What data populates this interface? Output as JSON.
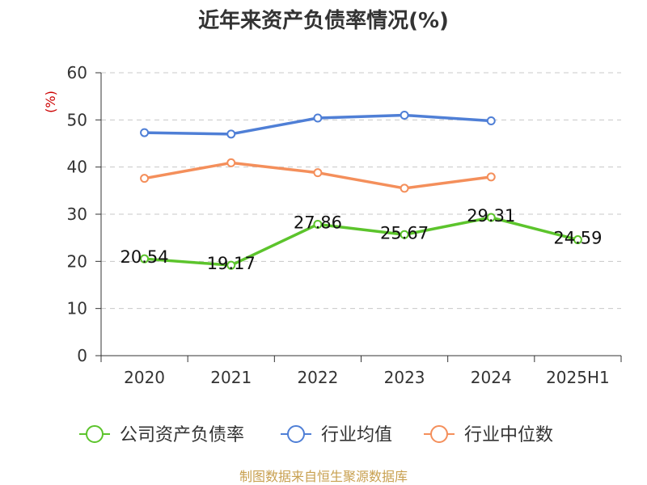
{
  "chart_data": {
    "type": "line",
    "title": "近年来资产负债率情况(%)",
    "ylabel": "(%)",
    "categories": [
      "2020",
      "2021",
      "2022",
      "2023",
      "2024",
      "2025H1"
    ],
    "ylim": [
      0,
      60
    ],
    "yticks": [
      0,
      10,
      20,
      30,
      40,
      50,
      60
    ],
    "grid": true,
    "legend_position": "bottom",
    "series": [
      {
        "name": "公司资产负债率",
        "color": "#5cc42c",
        "values": [
          20.54,
          19.17,
          27.86,
          25.67,
          29.31,
          24.59
        ],
        "data_labels": [
          "20.54",
          "19.17",
          "27.86",
          "25.67",
          "29.31",
          "24.59"
        ]
      },
      {
        "name": "行业均值",
        "color": "#4f7fd6",
        "values": [
          47.3,
          47.0,
          50.4,
          51.0,
          49.8,
          null
        ]
      },
      {
        "name": "行业中位数",
        "color": "#f48f5b",
        "values": [
          37.6,
          40.9,
          38.8,
          35.5,
          37.9,
          null
        ]
      }
    ]
  },
  "footer": {
    "source": "制图数据来自恒生聚源数据库"
  }
}
